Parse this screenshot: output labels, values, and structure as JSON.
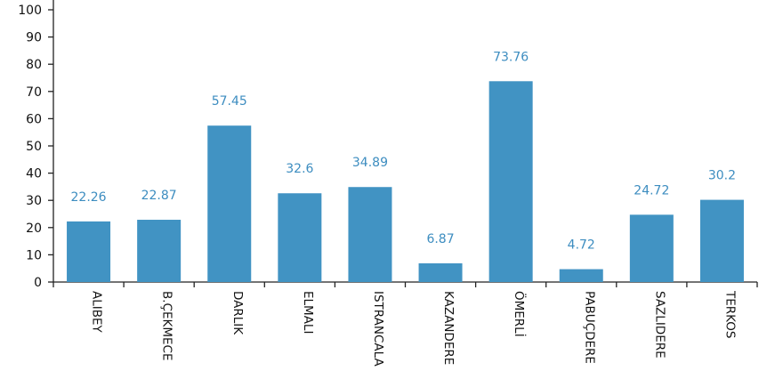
{
  "chart_data": {
    "type": "bar",
    "title": "",
    "xlabel": "",
    "ylabel": "",
    "categories": [
      "ALIBEY",
      "B.ÇEKMECE",
      "DARLIK",
      "ELMALI",
      "ISTRANCALA",
      "KAZANDERE",
      "ÖMERLİ",
      "PABUÇDERE",
      "SAZLIDERE",
      "TERKOS"
    ],
    "values": [
      22.26,
      22.87,
      57.45,
      32.6,
      34.89,
      6.87,
      73.76,
      4.72,
      24.72,
      30.2
    ],
    "data_labels": [
      "22.26",
      "22.87",
      "57.45",
      "32.6",
      "34.89",
      "6.87",
      "73.76",
      "4.72",
      "24.72",
      "30.2"
    ],
    "ylim": [
      0,
      100
    ],
    "yticks": [
      "0",
      "10",
      "20",
      "30",
      "40",
      "50",
      "60",
      "70",
      "80",
      "90",
      "100"
    ],
    "grid": false,
    "legend": "none",
    "colors": {
      "bar": "#4193c3",
      "data_label": "#3d8dc0",
      "axis": "#222222",
      "text": "#111111"
    }
  }
}
